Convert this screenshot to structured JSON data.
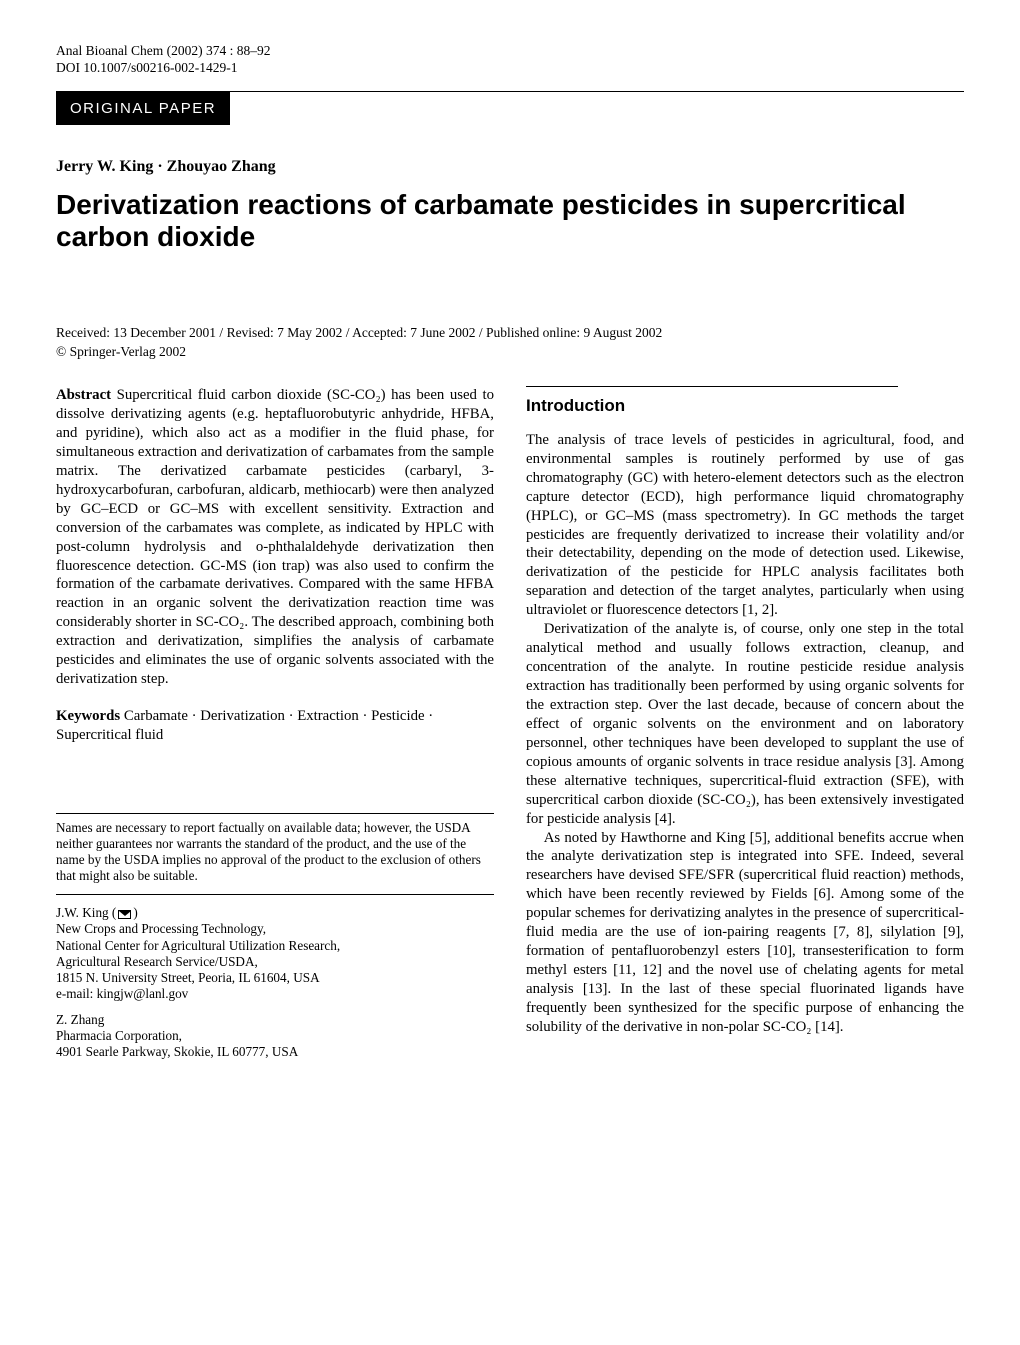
{
  "typography": {
    "body_font": "Times New Roman",
    "heading_font": "Arial",
    "title_fontsize_pt": 21,
    "body_fontsize_pt": 11,
    "heading_fontsize_pt": 13,
    "colors": {
      "text": "#000000",
      "background": "#ffffff",
      "bar_bg": "#000000",
      "bar_fg": "#ffffff"
    }
  },
  "header": {
    "journal_line": "Anal Bioanal Chem (2002) 374 : 88–92",
    "doi_line": "DOI 10.1007/s00216-002-1429-1",
    "paper_type": "ORIGINAL PAPER"
  },
  "authors_line": "Jerry W. King · Zhouyao Zhang",
  "title": "Derivatization reactions of carbamate pesticides in supercritical carbon dioxide",
  "received_line": "Received: 13 December 2001 / Revised: 7 May 2002 / Accepted: 7 June 2002 / Published online: 9 August 2002",
  "copyright_line": "© Springer-Verlag 2002",
  "abstract": {
    "label": "Abstract",
    "text": "Supercritical fluid carbon dioxide (SC-CO₂) has been used to dissolve derivatizing agents (e.g. heptafluorobutyric anhydride, HFBA, and pyridine), which also act as a modifier in the fluid phase, for simultaneous extraction and derivatization of carbamates from the sample matrix. The derivatized carbamate pesticides (carbaryl, 3-hydroxycarbofuran, carbofuran, aldicarb, methiocarb) were then analyzed by GC–ECD or GC–MS with excellent sensitivity. Extraction and conversion of the carbamates was complete, as indicated by HPLC with post-column hydrolysis and o-phthalaldehyde derivatization then fluorescence detection. GC-MS (ion trap) was also used to confirm the formation of the carbamate derivatives. Compared with the same HFBA reaction in an organic solvent the derivatization reaction time was considerably shorter in SC-CO₂. The described approach, combining both extraction and derivatization, simplifies the analysis of carbamate pesticides and eliminates the use of organic solvents associated with the derivatization step."
  },
  "keywords": {
    "label": "Keywords",
    "text": "Carbamate · Derivatization · Extraction · Pesticide · Supercritical fluid"
  },
  "footnotes": {
    "disclaimer": "Names are necessary to report factually on available data; however, the USDA neither guarantees nor warrants the standard of the product, and the use of the name by the USDA implies no approval of the product to the exclusion of others that might also be suitable.",
    "corr_author": "J.W. King (",
    "corr_author_after": ")",
    "affil1_lines": [
      "New Crops and Processing Technology,",
      "National Center for Agricultural Utilization Research,",
      "Agricultural Research Service/USDA,",
      "1815 N. University Street, Peoria, IL 61604, USA",
      "e-mail: kingjw@lanl.gov"
    ],
    "author2": "Z. Zhang",
    "affil2_lines": [
      "Pharmacia Corporation,",
      "4901 Searle Parkway, Skokie, IL 60777, USA"
    ]
  },
  "intro": {
    "heading": "Introduction",
    "paragraphs": [
      "The analysis of trace levels of pesticides in agricultural, food, and environmental samples is routinely performed by use of gas chromatography (GC) with hetero-element detectors such as the electron capture detector (ECD), high performance liquid chromatography (HPLC), or GC–MS (mass spectrometry). In GC methods the target pesticides are frequently derivatized to increase their volatility and/or their detectability, depending on the mode of detection used. Likewise, derivatization of the pesticide for HPLC analysis facilitates both separation and detection of the target analytes, particularly when using ultraviolet or fluorescence detectors [1, 2].",
      "Derivatization of the analyte is, of course, only one step in the total analytical method and usually follows extraction, cleanup, and concentration of the analyte. In routine pesticide residue analysis extraction has traditionally been performed by using organic solvents for the extraction step. Over the last decade, because of concern about the effect of organic solvents on the environment and on laboratory personnel, other techniques have been developed to supplant the use of copious amounts of organic solvents in trace residue analysis [3]. Among these alternative techniques, supercritical-fluid extraction (SFE), with supercritical carbon dioxide (SC-CO₂), has been extensively investigated for pesticide analysis [4].",
      "As noted by Hawthorne and King [5], additional benefits accrue when the analyte derivatization step is integrated into SFE. Indeed, several researchers have devised SFE/SFR (supercritical fluid reaction) methods, which have been recently reviewed by Fields [6]. Among some of the popular schemes for derivatizing analytes in the presence of supercritical-fluid media are the use of ion-pairing reagents [7, 8], silylation [9], formation of pentafluorobenzyl esters [10], transesterification to form methyl esters [11, 12] and the novel use of chelating agents for metal analysis [13]. In the last of these special fluorinated ligands have frequently been synthesized for the specific purpose of enhancing the solubility of the derivative in non-polar SC-CO₂ [14]."
    ]
  }
}
